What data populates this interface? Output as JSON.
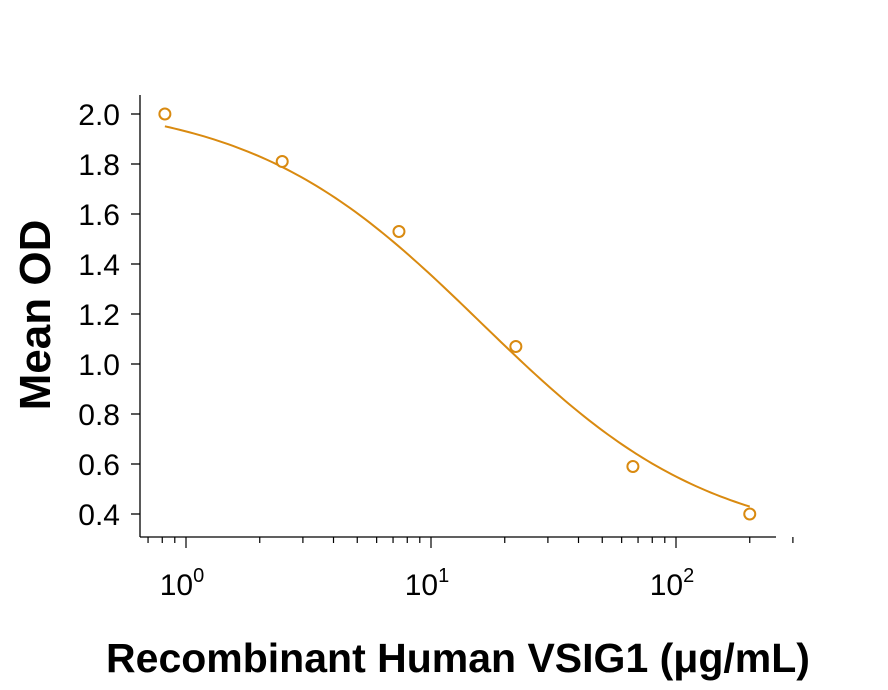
{
  "chart_data": {
    "type": "scatter",
    "title": "",
    "xlabel": "Recombinant Human VSIG1 (μg/mL)",
    "ylabel": "Mean OD",
    "x_scale": "log",
    "xlim": [
      0.65,
      380
    ],
    "ylim": [
      0.33,
      2.1
    ],
    "x_ticks": [
      {
        "value": 1,
        "base": "10",
        "exp": "0"
      },
      {
        "value": 10,
        "base": "10",
        "exp": "1"
      },
      {
        "value": 100,
        "base": "10",
        "exp": "2"
      }
    ],
    "y_ticks": [
      "0.4",
      "0.6",
      "0.8",
      "1.0",
      "1.2",
      "1.4",
      "1.6",
      "1.8",
      "2.0"
    ],
    "color": "#d98a10",
    "grid": false,
    "legend": "none",
    "series": [
      {
        "points": [
          {
            "x": 0.82,
            "y": 2.0
          },
          {
            "x": 2.47,
            "y": 1.81
          },
          {
            "x": 7.4,
            "y": 1.53
          },
          {
            "x": 22.2,
            "y": 1.07
          },
          {
            "x": 66.7,
            "y": 0.59
          },
          {
            "x": 200,
            "y": 0.4
          }
        ],
        "fit": {
          "model": "4PL",
          "top": 2.06,
          "bottom": 0.27,
          "ec50": 16,
          "hill": 0.92
        }
      }
    ]
  }
}
